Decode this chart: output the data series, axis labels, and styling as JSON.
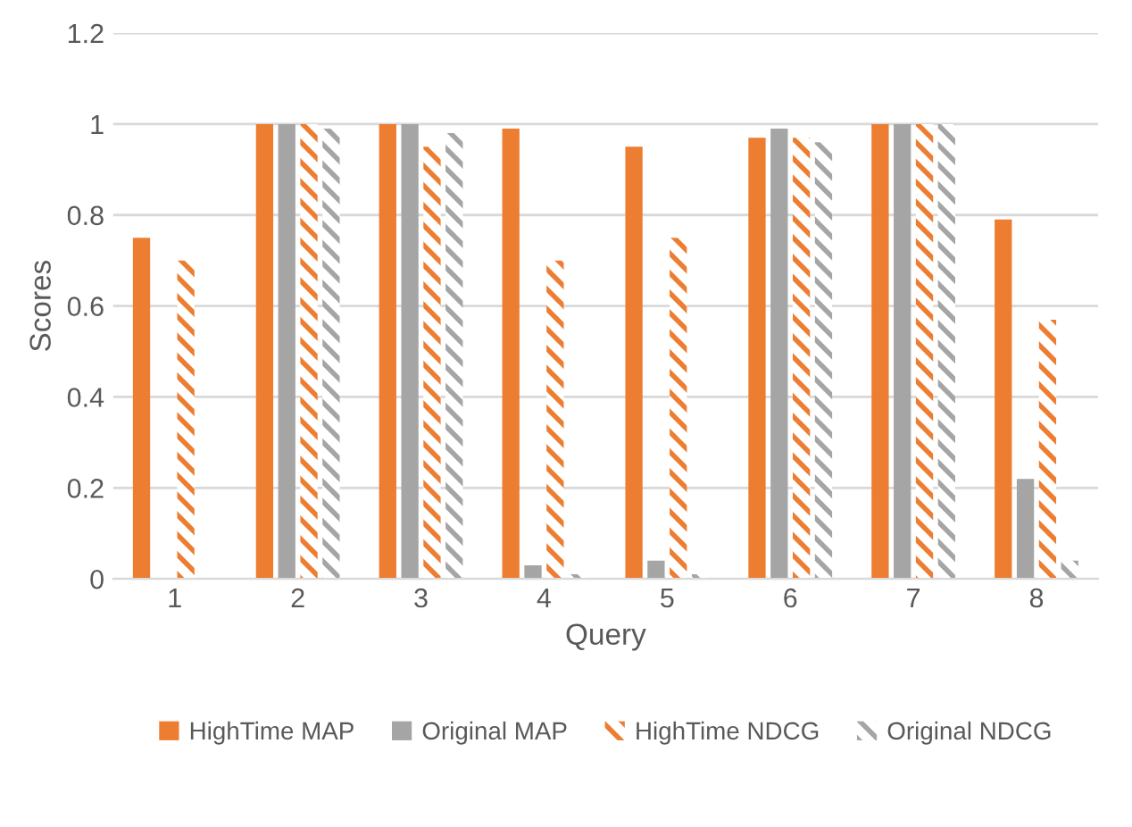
{
  "chart_data": {
    "type": "bar",
    "xlabel": "Query",
    "ylabel": "Scores",
    "categories": [
      "1",
      "2",
      "3",
      "4",
      "5",
      "6",
      "7",
      "8"
    ],
    "series": [
      {
        "name": "HighTime MAP",
        "color": "#ed7d31",
        "values": [
          0.75,
          1,
          1,
          0.99,
          0.95,
          0.97,
          1,
          0.79
        ]
      },
      {
        "name": "Original MAP",
        "color": "#a5a5a5",
        "values": [
          0,
          1,
          1,
          0.03,
          0.04,
          0.99,
          1,
          0.22
        ]
      },
      {
        "name": "HighTime NDCG",
        "color": "#ed7d31",
        "values": [
          0.7,
          1,
          0.95,
          0.7,
          0.75,
          0.97,
          1,
          0.57
        ]
      },
      {
        "name": "Original NDCG",
        "color": "#a5a5a5",
        "values": [
          0,
          0.99,
          0.98,
          0.01,
          0.01,
          0.96,
          1,
          0.04
        ]
      }
    ],
    "ylim": [
      0,
      1.2
    ],
    "yticks": [
      0,
      0.2,
      0.4,
      0.6,
      0.8,
      1,
      1.2
    ],
    "grid": "y",
    "legend": "bottom"
  }
}
